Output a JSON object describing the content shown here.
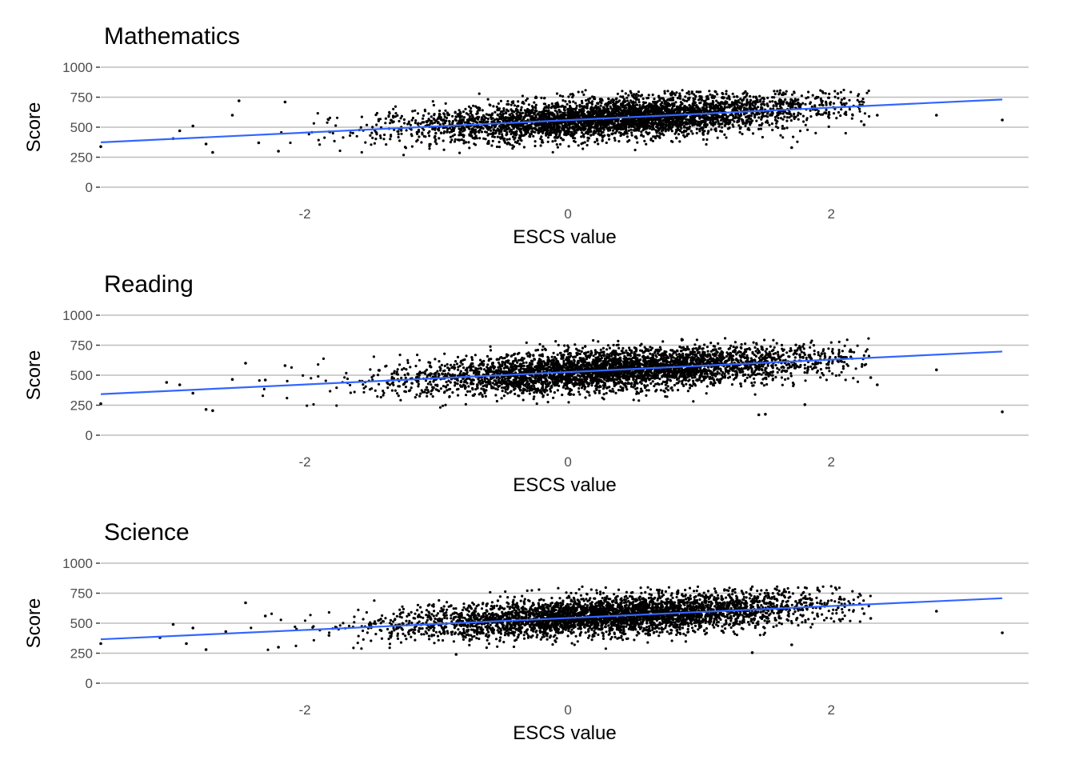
{
  "colors": {
    "points": "#000000",
    "trend": "#3366ff",
    "grid": "#bebebe",
    "tick_text": "#4d4d4d"
  },
  "chart_data": [
    {
      "type": "scatter",
      "title": "Mathematics",
      "xlabel": "ESCS value",
      "ylabel": "Score",
      "xlim": [
        -3.55,
        3.5
      ],
      "ylim": [
        0,
        1000
      ],
      "x_ticks": [
        "-2",
        "0",
        "2"
      ],
      "x_tick_values": [
        -2,
        0,
        2
      ],
      "y_ticks": [
        "0",
        "250",
        "500",
        "750",
        "1000"
      ],
      "y_tick_values": [
        0,
        250,
        500,
        750,
        1000
      ],
      "grid": true,
      "trend_line": {
        "x": [
          -3.55,
          3.3
        ],
        "y": [
          374,
          731
        ]
      },
      "scatter": {
        "center_x": 0.35,
        "spread_x": 0.8,
        "base_score": 560,
        "slope": 52,
        "spread_y": 82,
        "n": 4200,
        "outliers": [
          [
            -3.55,
            338
          ],
          [
            -3.0,
            405
          ],
          [
            -2.95,
            470
          ],
          [
            -2.85,
            510
          ],
          [
            -2.7,
            290
          ],
          [
            -2.75,
            360
          ],
          [
            -2.55,
            600
          ],
          [
            -2.5,
            720
          ],
          [
            -2.35,
            370
          ],
          [
            -2.2,
            300
          ],
          [
            -2.15,
            710
          ],
          [
            1.95,
            620
          ],
          [
            2.1,
            740
          ],
          [
            2.35,
            600
          ],
          [
            2.25,
            520
          ],
          [
            2.8,
            600
          ],
          [
            3.3,
            560
          ],
          [
            1.7,
            330
          ],
          [
            2.05,
            780
          ]
        ]
      }
    },
    {
      "type": "scatter",
      "title": "Reading",
      "xlabel": "ESCS value",
      "ylabel": "Score",
      "xlim": [
        -3.55,
        3.5
      ],
      "ylim": [
        0,
        1000
      ],
      "x_ticks": [
        "-2",
        "0",
        "2"
      ],
      "x_tick_values": [
        -2,
        0,
        2
      ],
      "y_ticks": [
        "0",
        "250",
        "500",
        "750",
        "1000"
      ],
      "y_tick_values": [
        0,
        250,
        500,
        750,
        1000
      ],
      "grid": true,
      "trend_line": {
        "x": [
          -3.55,
          3.3
        ],
        "y": [
          342,
          697
        ]
      },
      "scatter": {
        "center_x": 0.35,
        "spread_x": 0.8,
        "base_score": 525,
        "slope": 52,
        "spread_y": 84,
        "n": 4200,
        "outliers": [
          [
            -3.55,
            262
          ],
          [
            -3.05,
            440
          ],
          [
            -2.95,
            420
          ],
          [
            -2.85,
            350
          ],
          [
            -2.75,
            215
          ],
          [
            -2.7,
            205
          ],
          [
            -2.55,
            465
          ],
          [
            -2.45,
            600
          ],
          [
            -2.3,
            460
          ],
          [
            -2.15,
            580
          ],
          [
            1.95,
            680
          ],
          [
            2.1,
            640
          ],
          [
            2.3,
            480
          ],
          [
            2.35,
            420
          ],
          [
            2.8,
            545
          ],
          [
            3.3,
            195
          ],
          [
            1.8,
            255
          ],
          [
            1.45,
            170
          ],
          [
            1.5,
            175
          ]
        ]
      }
    },
    {
      "type": "scatter",
      "title": "Science",
      "xlabel": "ESCS value",
      "ylabel": "Score",
      "xlim": [
        -3.55,
        3.5
      ],
      "ylim": [
        0,
        1000
      ],
      "x_ticks": [
        "-2",
        "0",
        "2"
      ],
      "x_tick_values": [
        -2,
        0,
        2
      ],
      "y_ticks": [
        "0",
        "250",
        "500",
        "750",
        "1000"
      ],
      "y_tick_values": [
        0,
        250,
        500,
        750,
        1000
      ],
      "grid": true,
      "trend_line": {
        "x": [
          -3.55,
          3.3
        ],
        "y": [
          366,
          708
        ]
      },
      "scatter": {
        "center_x": 0.35,
        "spread_x": 0.8,
        "base_score": 550,
        "slope": 50,
        "spread_y": 80,
        "n": 4200,
        "outliers": [
          [
            -3.55,
            330
          ],
          [
            -3.1,
            380
          ],
          [
            -3.0,
            490
          ],
          [
            -2.9,
            330
          ],
          [
            -2.85,
            460
          ],
          [
            -2.75,
            280
          ],
          [
            -2.6,
            430
          ],
          [
            -2.45,
            670
          ],
          [
            -2.3,
            560
          ],
          [
            -2.2,
            300
          ],
          [
            1.95,
            650
          ],
          [
            2.1,
            700
          ],
          [
            2.3,
            540
          ],
          [
            2.25,
            580
          ],
          [
            2.8,
            600
          ],
          [
            3.3,
            420
          ],
          [
            1.7,
            320
          ],
          [
            1.4,
            255
          ],
          [
            -0.85,
            240
          ]
        ]
      }
    }
  ]
}
